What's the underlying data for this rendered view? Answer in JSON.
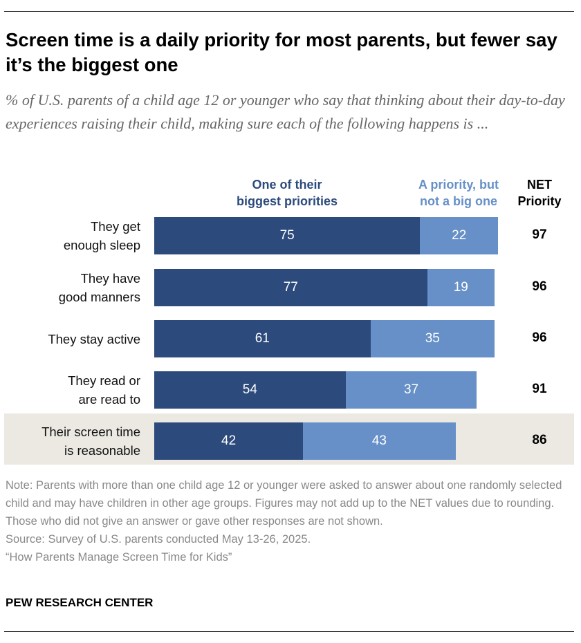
{
  "chart_data": {
    "type": "bar",
    "orientation": "horizontal",
    "stacked": true,
    "title": "Screen time is a daily priority for most parents, but fewer say it’s the biggest one",
    "subtitle": "% of U.S. parents of a child age 12 or younger who say that thinking about their day-to-day experiences raising their child, making sure each of the following happens is ...",
    "categories": [
      "They get enough sleep",
      "They have good manners",
      "They stay active",
      "They read or are read to",
      "Their screen time is reasonable"
    ],
    "category_lines": [
      [
        "They get",
        "enough sleep"
      ],
      [
        "They have",
        "good manners"
      ],
      [
        "They stay active"
      ],
      [
        "They read or",
        "are read to"
      ],
      [
        "Their screen time",
        "is reasonable"
      ]
    ],
    "series": [
      {
        "name": "One of their biggest priorities",
        "name_lines": [
          "One of their",
          "biggest priorities"
        ],
        "color": "#2c4a7c",
        "values": [
          75,
          77,
          61,
          54,
          42
        ]
      },
      {
        "name": "A priority, but not a big one",
        "name_lines": [
          "A priority, but",
          "not a big one"
        ],
        "color": "#6690c7",
        "values": [
          22,
          19,
          35,
          37,
          43
        ]
      }
    ],
    "net_label_lines": [
      "NET",
      "Priority"
    ],
    "net": [
      97,
      96,
      96,
      91,
      86
    ],
    "highlighted_category": "Their screen time is reasonable",
    "highlight_color": "#ebe9e2",
    "grid": false
  },
  "notes": {
    "note": "Note: Parents with more than one child age 12 or younger were asked to answer about one randomly selected child and may have children in other age groups. Figures may not add up to the NET values due to rounding. Those who did not give an answer or gave other responses are not shown.",
    "source": "Source: Survey of U.S. parents conducted May 13-26, 2025.",
    "report": "“How Parents Manage Screen Time for Kids”"
  },
  "brand": "PEW RESEARCH CENTER"
}
